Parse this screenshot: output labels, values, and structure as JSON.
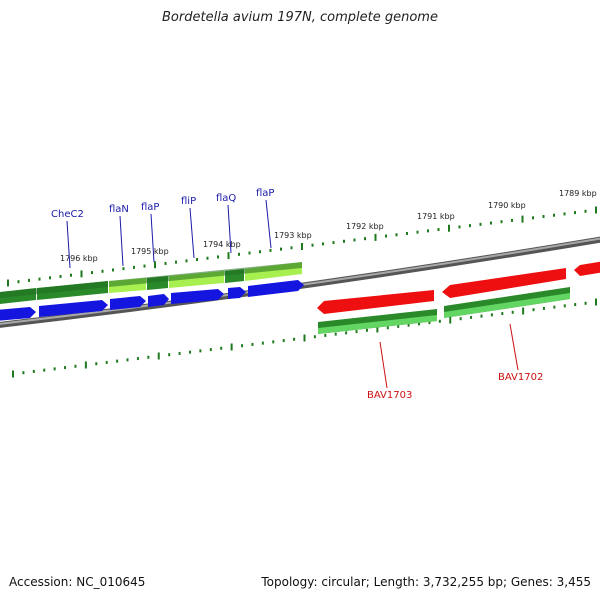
{
  "title": "Bordetella avium 197N, complete genome",
  "footer": {
    "accession": "Accession: NC_010645",
    "topology": "Topology: circular; Length: 3,732,255 bp; Genes: 3,455"
  },
  "colors": {
    "backbone": "#8a8a8a",
    "tick": "#1f7a1f",
    "blue_label": "#1a1aaa",
    "red_label": "#cc1111",
    "cds_blue": "#1515e0",
    "cds_red": "#ee1010",
    "gene_dark_green": "#2a8a2a",
    "gene_light_green": "#a8f050"
  },
  "ruler_labels": [
    "1796 kbp",
    "1795 kbp",
    "1794 kbp",
    "1793 kbp",
    "1792 kbp",
    "1791 kbp",
    "1790 kbp",
    "1789 kbp"
  ],
  "upper_gene_labels": [
    "CheC2",
    "flaN",
    "flaP",
    "fliP",
    "flaQ",
    "flaP"
  ],
  "lower_gene_labels": [
    "BAV1703",
    "BAV1702"
  ]
}
